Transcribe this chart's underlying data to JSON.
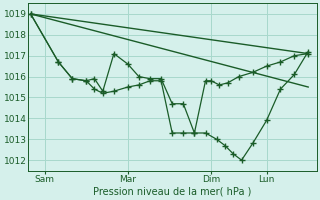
{
  "background_color": "#d5f0eb",
  "grid_color": "#a8d8cc",
  "line_color": "#1a5c28",
  "xlabel": "Pression niveau de la mer( hPa )",
  "ylim": [
    1011.5,
    1019.5
  ],
  "yticks": [
    1012,
    1013,
    1014,
    1015,
    1016,
    1017,
    1018,
    1019
  ],
  "xtick_labels": [
    "Sam",
    "Mar",
    "Dim",
    "Lun"
  ],
  "xtick_positions": [
    0.5,
    3.5,
    6.5,
    8.5
  ],
  "xlim": [
    -0.1,
    10.3
  ],
  "series2_x": [
    0,
    1.0,
    1.5,
    2.0,
    2.3,
    2.6,
    3.0,
    3.5,
    3.9,
    4.3,
    4.7,
    5.1,
    5.5,
    5.9,
    6.3,
    6.5,
    6.8,
    7.1,
    7.5,
    8.0,
    8.5,
    9.0,
    9.5,
    10.0
  ],
  "series2_y": [
    1019.0,
    1016.7,
    1015.9,
    1015.8,
    1015.9,
    1015.3,
    1017.1,
    1016.6,
    1016.0,
    1015.9,
    1015.9,
    1014.7,
    1014.7,
    1013.3,
    1015.8,
    1015.8,
    1015.6,
    1015.7,
    1016.0,
    1016.2,
    1016.5,
    1016.7,
    1017.0,
    1017.1
  ],
  "series3_x": [
    0,
    1.0,
    1.5,
    2.0,
    2.3,
    2.6,
    3.0,
    3.5,
    3.9,
    4.3,
    4.7,
    5.1,
    5.5,
    5.9,
    6.3,
    6.7,
    7.0,
    7.3,
    7.6,
    8.0,
    8.5,
    9.0,
    9.5,
    10.0
  ],
  "series3_y": [
    1019.0,
    1016.7,
    1015.9,
    1015.8,
    1015.4,
    1015.2,
    1015.3,
    1015.5,
    1015.6,
    1015.8,
    1015.8,
    1013.3,
    1013.3,
    1013.3,
    1013.3,
    1013.0,
    1012.7,
    1012.3,
    1012.0,
    1012.8,
    1013.9,
    1015.4,
    1016.1,
    1017.2
  ],
  "trendline1_x": [
    0,
    10.0
  ],
  "trendline1_y": [
    1019.0,
    1015.5
  ],
  "trendline2_x": [
    0,
    10.0
  ],
  "trendline2_y": [
    1019.0,
    1017.1
  ],
  "vline_positions": [
    0.5,
    3.5,
    6.5,
    8.5
  ]
}
